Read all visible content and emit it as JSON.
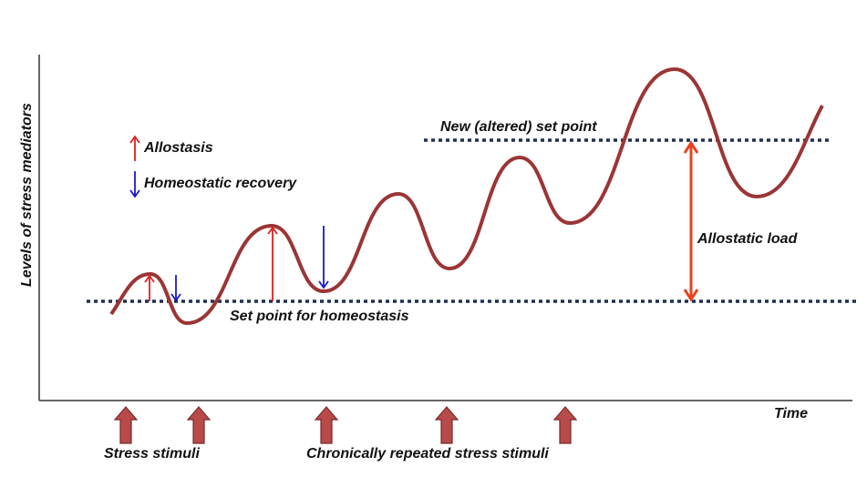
{
  "y_axis_label": "Levels of stress mediators",
  "x_axis_label": "Time",
  "legend": {
    "allostasis": "Allostasis",
    "recovery": "Homeostatic recovery"
  },
  "labels": {
    "set_point": "Set point for homeostasis",
    "new_set_point": "New (altered) set point",
    "allostatic_load": "Allostatic load",
    "stress_stimuli": "Stress stimuli",
    "chronic_stimuli": "Chronically repeated stress stimuli"
  },
  "colors": {
    "curve": "#9b3535",
    "allostasis_arrow": "#e02020",
    "recovery_arrow": "#1a1acc",
    "dotted": "#1f2f4f",
    "load_arrow": "#e8421c",
    "stimulus_arrow": "#b84a4a"
  }
}
